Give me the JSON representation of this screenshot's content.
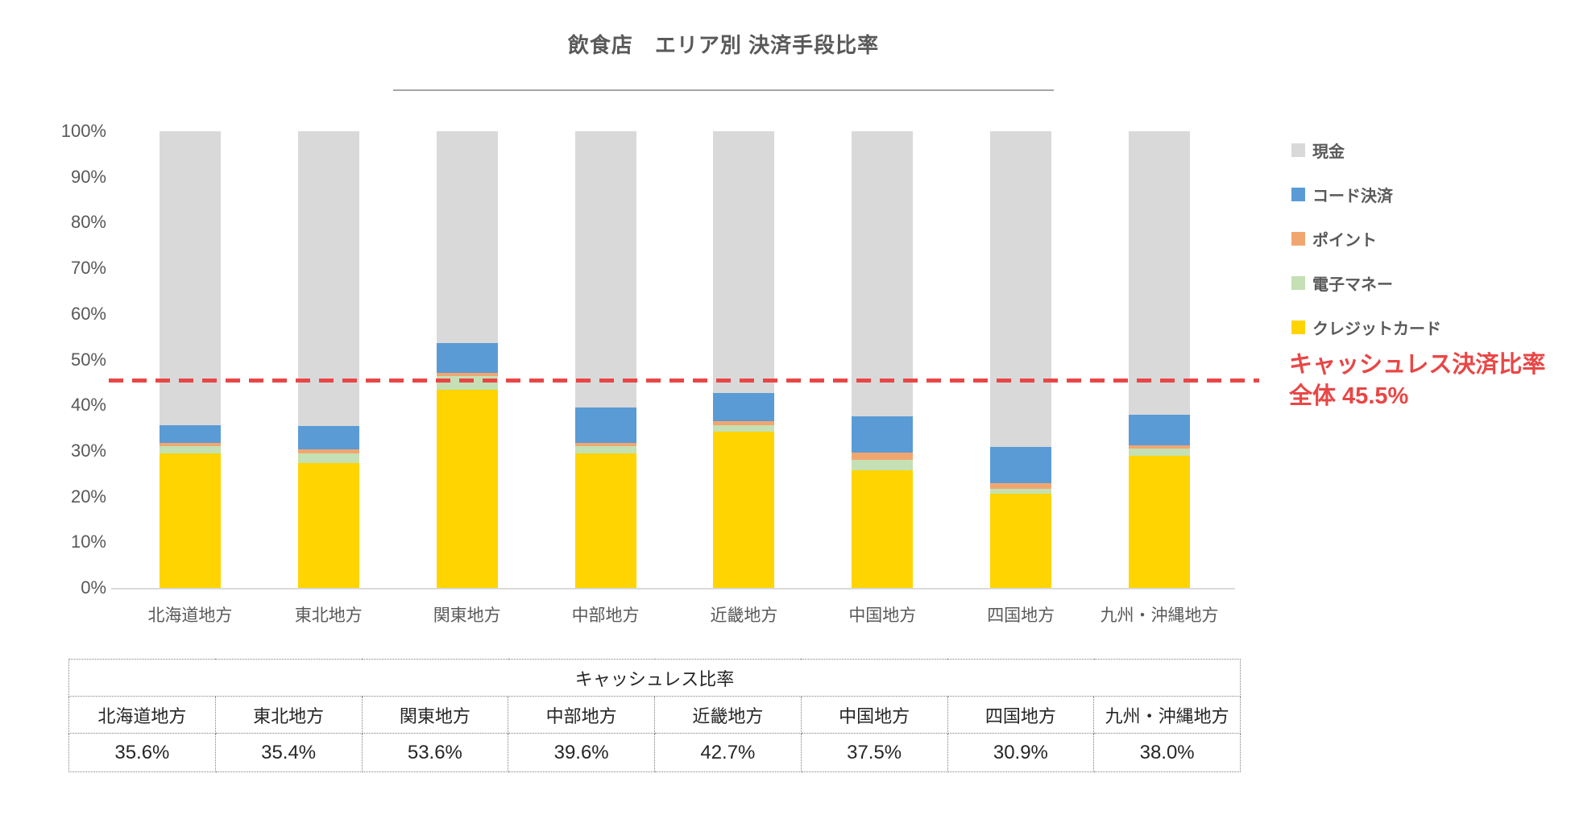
{
  "title": "飲食店　エリア別 決済手段比率",
  "chart_data": {
    "type": "bar",
    "stacked": true,
    "orientation": "vertical",
    "categories": [
      "北海道地方",
      "東北地方",
      "関東地方",
      "中部地方",
      "近畿地方",
      "中国地方",
      "四国地方",
      "九州・沖縄地方"
    ],
    "series": [
      {
        "name": "クレジットカード",
        "color": "#ffd400",
        "values": [
          29.5,
          27.3,
          43.4,
          29.5,
          34.2,
          25.8,
          20.6,
          28.9
        ]
      },
      {
        "name": "電子マネー",
        "color": "#c5e0b4",
        "values": [
          1.6,
          2.2,
          3.0,
          1.5,
          1.4,
          2.2,
          1.1,
          1.6
        ]
      },
      {
        "name": "ポイント",
        "color": "#f1a670",
        "values": [
          0.7,
          0.8,
          0.7,
          0.7,
          0.9,
          1.6,
          1.2,
          0.7
        ]
      },
      {
        "name": "コード決済",
        "color": "#5b9bd5",
        "values": [
          3.8,
          5.1,
          6.5,
          7.9,
          6.2,
          7.9,
          8.0,
          6.8
        ]
      },
      {
        "name": "現金",
        "color": "#d9d9d9",
        "values": [
          64.4,
          64.6,
          46.4,
          60.4,
          57.3,
          62.5,
          69.1,
          62.0
        ]
      }
    ],
    "cashless_totals": [
      35.6,
      35.4,
      53.6,
      39.6,
      42.7,
      37.5,
      30.9,
      38.0
    ],
    "ylabel": "",
    "xlabel": "",
    "ylim": [
      0,
      100
    ],
    "yticks": [
      "100%",
      "90%",
      "80%",
      "70%",
      "60%",
      "50%",
      "40%",
      "30%",
      "20%",
      "10%",
      "0%"
    ],
    "grid": false,
    "legend_position": "right",
    "legend_order": [
      "現金",
      "コード決済",
      "ポイント",
      "電子マネー",
      "クレジットカード"
    ],
    "reference_line": {
      "value": 45.5,
      "color": "#e94646",
      "style": "dashed",
      "label_line1": "キャッシュレス決済比率",
      "label_line2": "全体 45.5%"
    }
  },
  "table": {
    "title": "キャッシュレス比率",
    "columns": [
      "北海道地方",
      "東北地方",
      "関東地方",
      "中部地方",
      "近畿地方",
      "中国地方",
      "四国地方",
      "九州・沖縄地方"
    ],
    "values": [
      "35.6%",
      "35.4%",
      "53.6%",
      "39.6%",
      "42.7%",
      "37.5%",
      "30.9%",
      "38.0%"
    ]
  }
}
